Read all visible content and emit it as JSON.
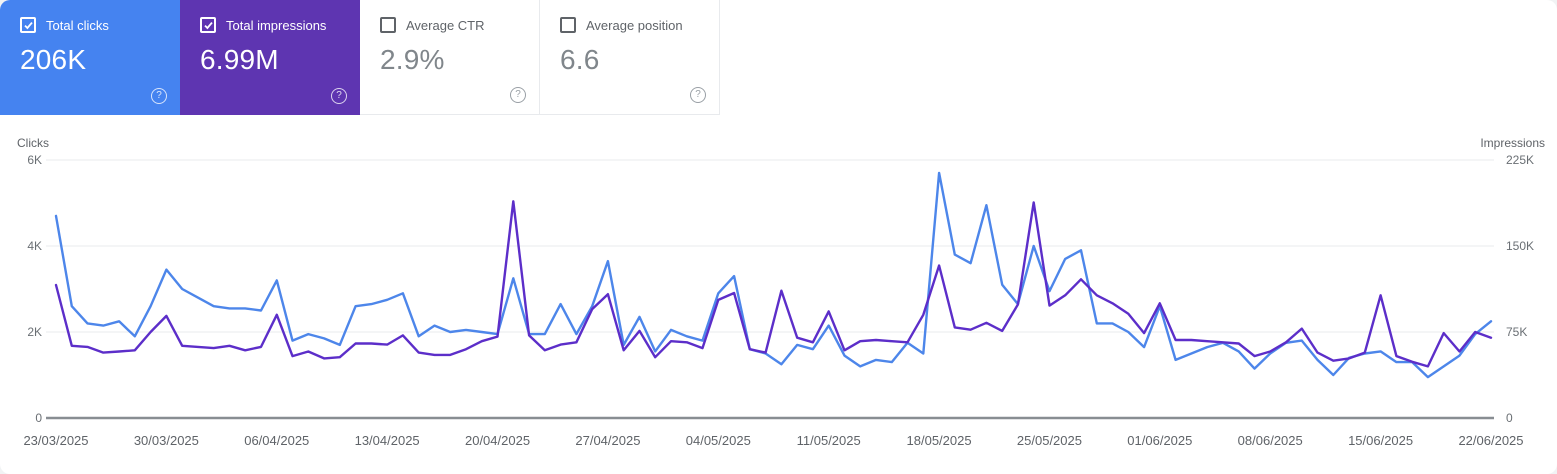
{
  "cards": [
    {
      "label": "Total clicks",
      "value": "206K",
      "checked": true,
      "bg": "#4583f0",
      "check_color": "#ffffff",
      "help_icon": "?"
    },
    {
      "label": "Total impressions",
      "value": "6.99M",
      "checked": true,
      "bg": "#5e35b1",
      "check_color": "#ffffff",
      "help_icon": "?"
    },
    {
      "label": "Average CTR",
      "value": "2.9%",
      "checked": false,
      "bg": "#ffffff",
      "check_color": "#5f6368",
      "help_icon": "?"
    },
    {
      "label": "Average position",
      "value": "6.6",
      "checked": false,
      "bg": "#ffffff",
      "check_color": "#5f6368",
      "help_icon": "?"
    }
  ],
  "colors": {
    "clicks": "#4d86ea",
    "impressions": "#5c2ec9",
    "gridline": "#edeff1",
    "axis_line": "#888d92",
    "tick_text": "#6a6f74"
  },
  "chart_data": {
    "type": "line",
    "x_interval": "daily",
    "x_start": "23/03/2025",
    "x_end": "22/06/2025",
    "x_tick_labels": [
      "23/03/2025",
      "30/03/2025",
      "06/04/2025",
      "13/04/2025",
      "20/04/2025",
      "27/04/2025",
      "04/05/2025",
      "11/05/2025",
      "18/05/2025",
      "25/05/2025",
      "01/06/2025",
      "08/06/2025",
      "15/06/2025",
      "22/06/2025"
    ],
    "left_axis": {
      "label": "Clicks",
      "max": 6000,
      "ticks": [
        {
          "label": "0",
          "value": 0
        },
        {
          "label": "2K",
          "value": 2000
        },
        {
          "label": "4K",
          "value": 4000
        },
        {
          "label": "6K",
          "value": 6000
        }
      ]
    },
    "right_axis": {
      "label": "Impressions",
      "max": 225000,
      "ticks": [
        {
          "label": "0",
          "value": 0
        },
        {
          "label": "75K",
          "value": 75000
        },
        {
          "label": "150K",
          "value": 150000
        },
        {
          "label": "225K",
          "value": 225000
        }
      ]
    },
    "grid": true,
    "legend_position": "none",
    "series": [
      {
        "name": "Clicks",
        "axis": "left",
        "color": "#4d86ea",
        "value_multiplier": 1,
        "values": [
          4700,
          2600,
          2200,
          2150,
          2250,
          1900,
          2600,
          3450,
          3000,
          2800,
          2600,
          2550,
          2550,
          2500,
          3200,
          1800,
          1950,
          1850,
          1700,
          2600,
          2650,
          2750,
          2900,
          1900,
          2150,
          2000,
          2050,
          2000,
          1950,
          3250,
          1950,
          1950,
          2650,
          1950,
          2600,
          3650,
          1700,
          2350,
          1550,
          2050,
          1900,
          1800,
          2900,
          3300,
          1600,
          1500,
          1250,
          1700,
          1600,
          2150,
          1450,
          1200,
          1350,
          1300,
          1750,
          1500,
          5700,
          3800,
          3600,
          4950,
          3100,
          2650,
          4000,
          2950,
          3700,
          3900,
          2200,
          2200,
          2000,
          1650,
          2600,
          1350,
          1500,
          1650,
          1750,
          1550,
          1150,
          1500,
          1750,
          1800,
          1350,
          1000,
          1400,
          1500,
          1550,
          1300,
          1300,
          950,
          1200,
          1450,
          1950,
          2250
        ]
      },
      {
        "name": "Impressions",
        "axis": "right",
        "color": "#5c2ec9",
        "value_multiplier": 1000,
        "values": [
          116,
          63,
          62,
          57,
          58,
          59,
          75,
          89,
          63,
          62,
          61,
          63,
          59,
          62,
          90,
          54,
          58,
          52,
          53,
          65,
          65,
          64,
          72,
          57,
          55,
          55,
          60,
          67,
          71,
          189,
          72,
          59,
          64,
          66,
          95,
          108,
          59,
          76,
          53,
          67,
          66,
          61,
          103,
          109,
          60,
          57,
          111,
          70,
          66,
          93,
          59,
          67,
          68,
          67,
          66,
          90,
          133,
          79,
          77,
          83,
          76,
          99,
          188,
          98,
          107,
          121,
          107,
          100,
          91,
          74,
          100,
          68,
          68,
          67,
          66,
          65,
          54,
          58,
          66,
          78,
          57,
          50,
          52,
          57,
          107,
          54,
          49,
          45,
          74,
          58,
          75,
          70
        ]
      }
    ]
  }
}
